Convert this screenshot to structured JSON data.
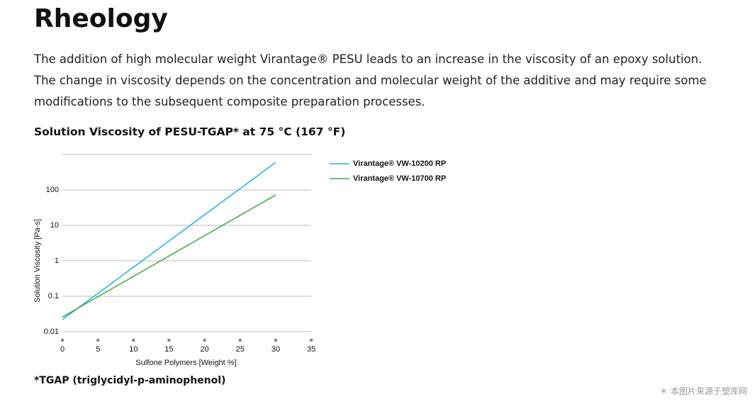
{
  "header": {
    "title": "Rheology"
  },
  "paragraph": "The addition of high molecular weight Virantage® PESU leads to an increase in the viscosity of an epoxy solution. The change in viscosity depends on the concentration and molecular weight of the additive and may require some modifications to the subsequent composite preparation processes.",
  "chart_data": {
    "type": "line",
    "title": "Solution Viscosity of PESU-TGAP* at 75 °C (167 °F)",
    "x_label": "Sulfone Polymers [Weight %]",
    "y_label": "Solution Viscosity [Pa-s]",
    "x": [
      0,
      30
    ],
    "series": [
      {
        "name": "Virantage® VW-10200 RP",
        "color": "#29abe2",
        "values": [
          0.022,
          600
        ]
      },
      {
        "name": "Virantage® VW-10700 RP",
        "color": "#43a847",
        "values": [
          0.026,
          72
        ]
      }
    ],
    "xlim": [
      0,
      35
    ],
    "xticks": [
      0,
      5,
      10,
      15,
      20,
      25,
      30,
      35
    ],
    "ylim": [
      0.01,
      1000
    ],
    "yticks": [
      0.01,
      0.1,
      1,
      10,
      100
    ],
    "log_y": true,
    "grid": true,
    "legend": "right"
  },
  "footnote": "*TGAP (triglycidyl-p-aminophenol)",
  "watermark": "＊ 本图片来源于塑库网"
}
